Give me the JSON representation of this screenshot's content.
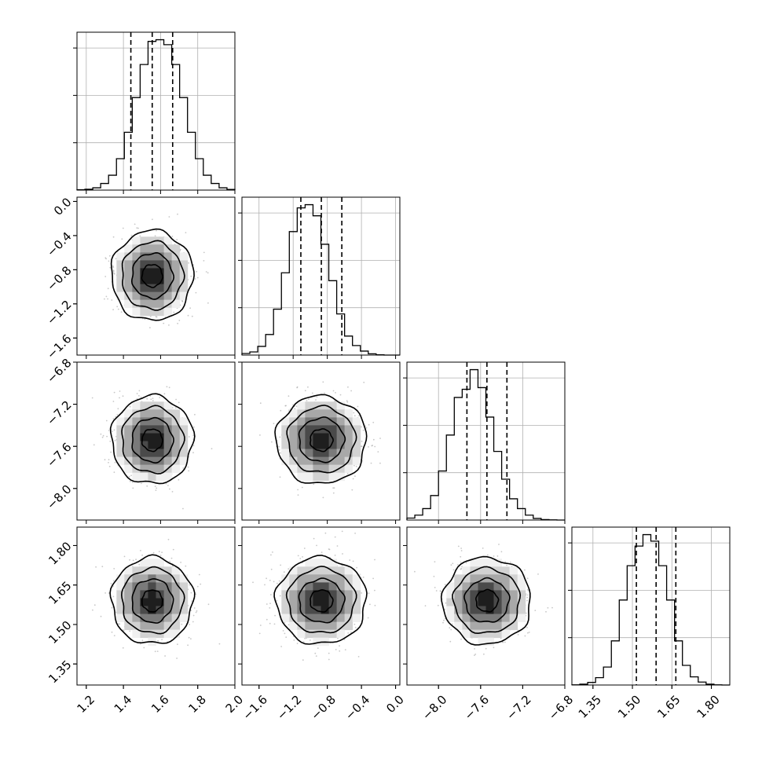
{
  "chart_data": {
    "type": "corner",
    "grid": true,
    "parameters": [
      {
        "range": [
          1.15,
          2.0
        ],
        "ticks": [
          1.2,
          1.4,
          1.6,
          1.8,
          2.0
        ],
        "tick_labels": [
          "1.2",
          "1.4",
          "1.6",
          "1.8",
          "2.0"
        ],
        "mean": 1.555,
        "sd": 0.1,
        "quantiles": [
          1.44,
          1.555,
          1.665
        ]
      },
      {
        "range": [
          -1.8,
          0.05
        ],
        "ticks": [
          -1.6,
          -1.2,
          -0.8,
          -0.4,
          0.0
        ],
        "tick_labels": [
          "−1.6",
          "−1.2",
          "−0.8",
          "−0.4",
          "0.0"
        ],
        "mean": -0.87,
        "sd": 0.24,
        "quantiles": [
          -1.11,
          -0.87,
          -0.63
        ]
      },
      {
        "range": [
          -8.3,
          -6.8
        ],
        "ticks": [
          -8.0,
          -7.6,
          -7.2,
          -6.8
        ],
        "tick_labels": [
          "−8.0",
          "−7.6",
          "−7.2",
          "−6.8"
        ],
        "mean": -7.54,
        "sd": 0.19,
        "quantiles": [
          -7.73,
          -7.54,
          -7.35
        ]
      },
      {
        "range": [
          1.27,
          1.87
        ],
        "ticks": [
          1.35,
          1.5,
          1.65,
          1.8
        ],
        "tick_labels": [
          "1.35",
          "1.50",
          "1.65",
          "1.80"
        ],
        "mean": 1.59,
        "sd": 0.075,
        "quantiles": [
          1.515,
          1.59,
          1.665
        ]
      }
    ],
    "histograms": [
      {
        "param": 0,
        "bins_low": 1.15,
        "bin_width": 0.0425,
        "counts": [
          2,
          5,
          14,
          40,
          90,
          190,
          350,
          560,
          760,
          900,
          910,
          880,
          760,
          560,
          350,
          190,
          90,
          40,
          14,
          4
        ]
      },
      {
        "param": 1,
        "bins_low": -1.8,
        "bin_width": 0.0925,
        "counts": [
          10,
          20,
          55,
          130,
          290,
          520,
          780,
          930,
          950,
          880,
          700,
          470,
          260,
          120,
          60,
          25,
          8,
          2,
          0,
          0
        ]
      },
      {
        "param": 2,
        "bins_low": -8.3,
        "bin_width": 0.075,
        "counts": [
          12,
          30,
          70,
          150,
          300,
          520,
          750,
          800,
          920,
          810,
          630,
          420,
          250,
          130,
          70,
          30,
          10,
          3,
          1,
          0
        ]
      },
      {
        "param": 3,
        "bins_low": 1.27,
        "bin_width": 0.03,
        "counts": [
          1,
          5,
          16,
          45,
          110,
          270,
          520,
          730,
          850,
          920,
          880,
          730,
          520,
          270,
          120,
          50,
          18,
          5,
          1,
          0
        ]
      }
    ],
    "pairs": [
      {
        "x_param": 0,
        "y_param": 1
      },
      {
        "x_param": 0,
        "y_param": 2
      },
      {
        "x_param": 1,
        "y_param": 2
      },
      {
        "x_param": 0,
        "y_param": 3
      },
      {
        "x_param": 1,
        "y_param": 3
      },
      {
        "x_param": 2,
        "y_param": 3
      }
    ],
    "contour_levels_sigma": [
      0.5,
      1.0,
      1.5,
      2.0
    ],
    "density_shades": [
      "#f0f0f0",
      "#d2d2d2",
      "#a8a8a8",
      "#7a7a7a",
      "#4a4a4a",
      "#1e1e1e"
    ]
  }
}
